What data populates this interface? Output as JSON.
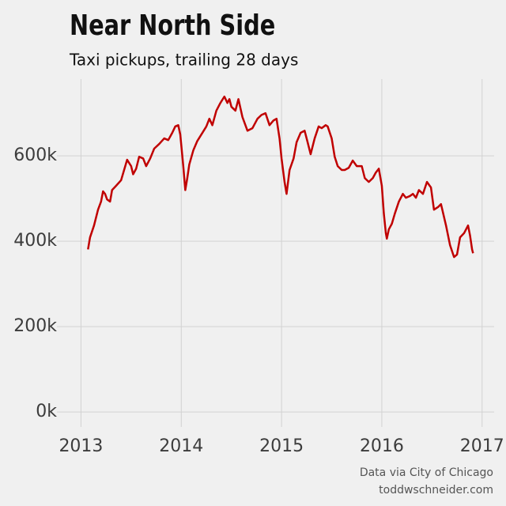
{
  "chart_data": {
    "type": "line",
    "title": "Near North Side",
    "subtitle": "Taxi pickups, trailing 28 days",
    "source": [
      "Data via City of Chicago",
      "toddwschneider.com"
    ],
    "x": [
      2013.07,
      2013.09,
      2013.13,
      2013.17,
      2013.2,
      2013.22,
      2013.24,
      2013.26,
      2013.29,
      2013.31,
      2013.35,
      2013.4,
      2013.43,
      2013.46,
      2013.5,
      2013.52,
      2013.55,
      2013.58,
      2013.62,
      2013.65,
      2013.69,
      2013.73,
      2013.78,
      2013.83,
      2013.87,
      2013.91,
      2013.94,
      2013.97,
      2013.99,
      2014.02,
      2014.04,
      2014.06,
      2014.08,
      2014.12,
      2014.16,
      2014.2,
      2014.25,
      2014.28,
      2014.31,
      2014.35,
      2014.39,
      2014.43,
      2014.46,
      2014.48,
      2014.5,
      2014.54,
      2014.57,
      2014.61,
      2014.66,
      2014.71,
      2014.76,
      2014.8,
      2014.84,
      2014.88,
      2014.92,
      2014.95,
      2014.98,
      2015.0,
      2015.03,
      2015.05,
      2015.08,
      2015.12,
      2015.15,
      2015.19,
      2015.23,
      2015.26,
      2015.29,
      2015.33,
      2015.37,
      2015.4,
      2015.44,
      2015.46,
      2015.5,
      2015.53,
      2015.56,
      2015.6,
      2015.63,
      2015.67,
      2015.71,
      2015.75,
      2015.8,
      2015.83,
      2015.87,
      2015.91,
      2015.94,
      2015.97,
      2016.0,
      2016.02,
      2016.04,
      2016.05,
      2016.07,
      2016.1,
      2016.13,
      2016.17,
      2016.21,
      2016.24,
      2016.28,
      2016.31,
      2016.34,
      2016.37,
      2016.41,
      2016.45,
      2016.49,
      2016.52,
      2016.56,
      2016.59,
      2016.64,
      2016.68,
      2016.72,
      2016.75,
      2016.78,
      2016.82,
      2016.86,
      2016.88,
      2016.9,
      2016.91
    ],
    "series": [
      {
        "name": "Near North Side",
        "color": "#c00000",
        "values": [
          381000,
          409000,
          437000,
          474000,
          493000,
          517000,
          511000,
          498000,
          493000,
          520000,
          530000,
          543000,
          567000,
          591000,
          576000,
          557000,
          570000,
          598000,
          594000,
          576000,
          594000,
          617000,
          628000,
          641000,
          637000,
          654000,
          669000,
          672000,
          650000,
          576000,
          520000,
          548000,
          580000,
          613000,
          635000,
          650000,
          669000,
          687000,
          672000,
          706000,
          724000,
          739000,
          724000,
          733000,
          715000,
          706000,
          733000,
          691000,
          659000,
          665000,
          687000,
          696000,
          700000,
          672000,
          683000,
          687000,
          641000,
          594000,
          539000,
          511000,
          567000,
          594000,
          632000,
          654000,
          659000,
          632000,
          604000,
          641000,
          669000,
          665000,
          672000,
          669000,
          641000,
          598000,
          576000,
          567000,
          567000,
          572000,
          589000,
          576000,
          576000,
          548000,
          539000,
          548000,
          561000,
          570000,
          530000,
          465000,
          419000,
          406000,
          428000,
          441000,
          465000,
          493000,
          511000,
          502000,
          506000,
          511000,
          502000,
          520000,
          511000,
          539000,
          526000,
          474000,
          480000,
          487000,
          437000,
          391000,
          363000,
          369000,
          409000,
          419000,
          437000,
          413000,
          381000,
          372000
        ]
      }
    ],
    "xlim": [
      2012.76,
      2017.12
    ],
    "xticks": [
      2013,
      2014,
      2015,
      2016,
      2017
    ],
    "ylim": [
      -35000,
      780000
    ],
    "yticks": [
      {
        "value": 0,
        "label": "0k"
      },
      {
        "value": 200000,
        "label": "200k"
      },
      {
        "value": 400000,
        "label": "400k"
      },
      {
        "value": 600000,
        "label": "600k"
      }
    ],
    "grid": true
  }
}
